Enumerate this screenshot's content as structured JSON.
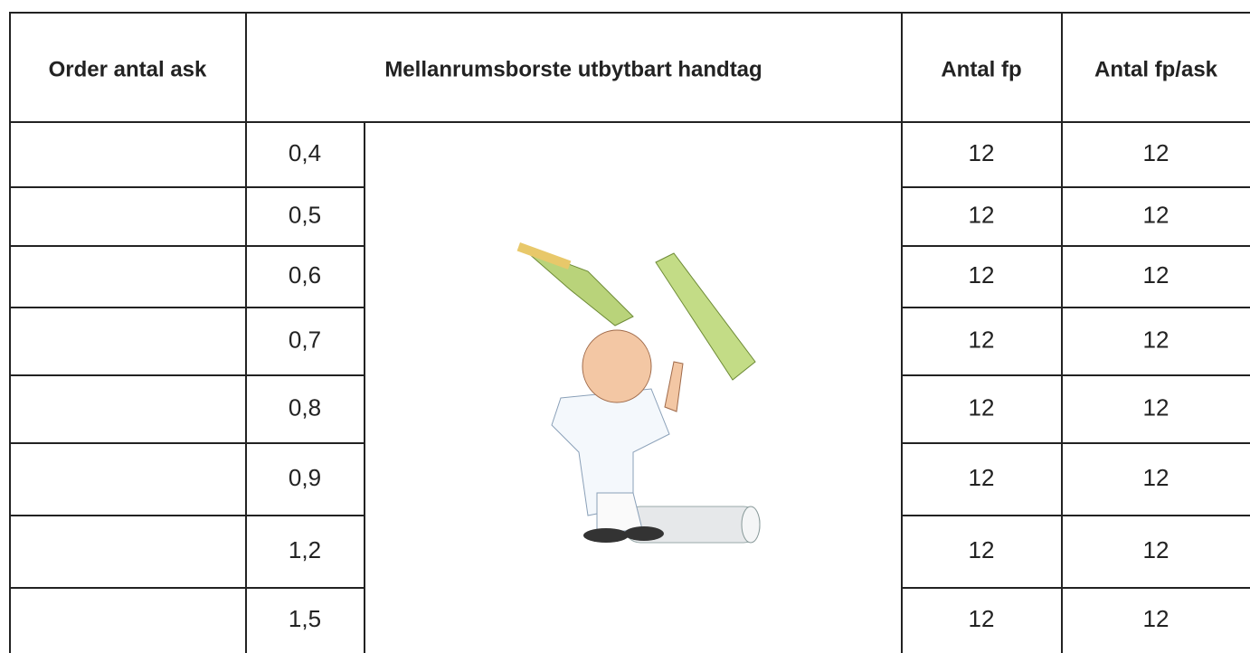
{
  "table": {
    "header": [
      "Order antal ask",
      "Mellanrumsborste utbytbart handtag",
      "Antal fp",
      "Antal fp/ask"
    ],
    "rows": [
      [
        "0,4",
        12,
        12
      ],
      [
        "0,5",
        12,
        12
      ],
      [
        "0,6",
        12,
        12
      ],
      [
        "0,7",
        12,
        12
      ],
      [
        "0,8",
        12,
        12
      ],
      [
        "0,9",
        12,
        12
      ],
      [
        "1,2",
        12,
        12
      ],
      [
        "1,5",
        12,
        12
      ]
    ]
  }
}
